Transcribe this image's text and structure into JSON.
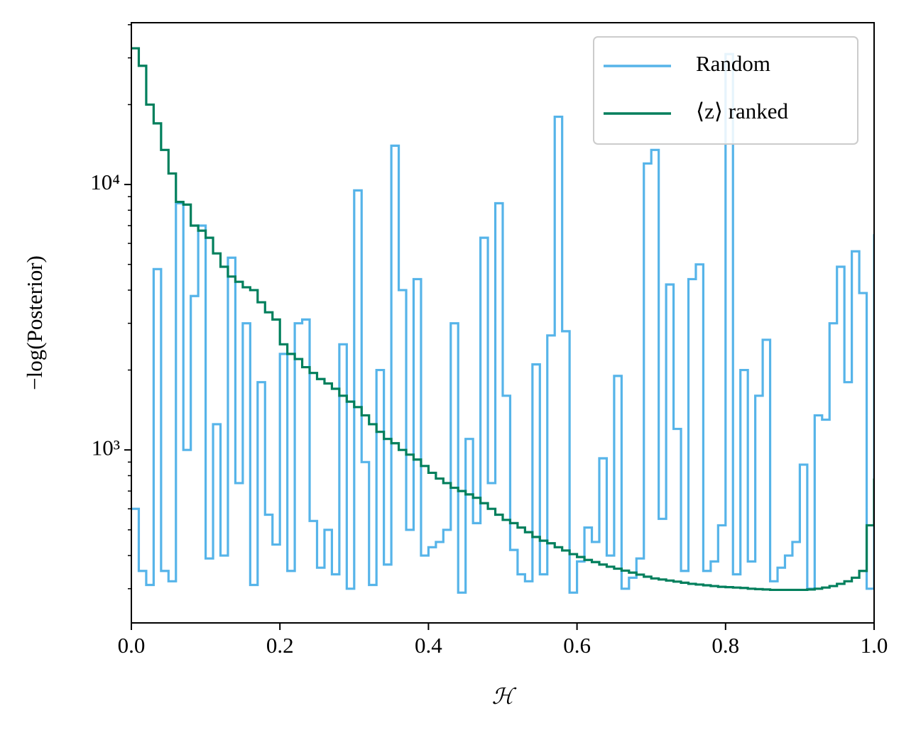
{
  "chart_data": {
    "type": "step",
    "xlabel": "ℋ",
    "ylabel": "−log(Posterior)",
    "xlim": [
      0,
      1
    ],
    "xticks": [
      {
        "value": 0,
        "label": "0.0"
      },
      0.2,
      0.4,
      0.6,
      0.8,
      {
        "value": 1,
        "label": "1.0"
      }
    ],
    "ylim": [
      223,
      40700
    ],
    "yscale": "log",
    "yticks": [
      {
        "value": 1000,
        "label": "10³"
      },
      {
        "value": 10000,
        "label": "10⁴"
      }
    ],
    "yminorticks": [
      300,
      400,
      500,
      600,
      700,
      800,
      900,
      2000,
      3000,
      4000,
      5000,
      6000,
      7000,
      8000,
      9000,
      20000,
      30000,
      40000
    ],
    "step": "post",
    "legend": "upper right",
    "x": [
      0,
      0.01,
      0.02,
      0.03,
      0.04,
      0.05,
      0.06,
      0.07,
      0.08,
      0.09,
      0.1,
      0.11,
      0.12,
      0.13,
      0.14,
      0.15,
      0.16,
      0.17,
      0.18,
      0.19,
      0.2,
      0.21,
      0.22,
      0.23,
      0.24,
      0.25,
      0.26,
      0.27,
      0.28,
      0.29,
      0.3,
      0.31,
      0.32,
      0.33,
      0.34,
      0.35,
      0.36,
      0.37,
      0.38,
      0.39,
      0.4,
      0.41,
      0.42,
      0.43,
      0.44,
      0.45,
      0.46,
      0.47,
      0.48,
      0.49,
      0.5,
      0.51,
      0.52,
      0.53,
      0.54,
      0.55,
      0.56,
      0.57,
      0.58,
      0.59,
      0.6,
      0.61,
      0.62,
      0.63,
      0.64,
      0.65,
      0.66,
      0.67,
      0.68,
      0.69,
      0.7,
      0.71,
      0.72,
      0.73,
      0.74,
      0.75,
      0.76,
      0.77,
      0.78,
      0.79,
      0.8,
      0.81,
      0.82,
      0.83,
      0.84,
      0.85,
      0.86,
      0.87,
      0.88,
      0.89,
      0.9,
      0.91,
      0.92,
      0.93,
      0.94,
      0.95,
      0.96,
      0.97,
      0.98,
      0.99,
      1
    ],
    "series": [
      {
        "name": "Random",
        "color": "#56b4e9",
        "values": [
          600,
          350,
          310,
          4800,
          350,
          320,
          8500,
          1000,
          3800,
          7000,
          390,
          1250,
          400,
          5300,
          750,
          3000,
          310,
          1800,
          570,
          440,
          2300,
          350,
          3000,
          3100,
          540,
          360,
          500,
          340,
          2500,
          300,
          9500,
          900,
          310,
          2000,
          370,
          14000,
          4000,
          500,
          4400,
          400,
          430,
          450,
          500,
          3000,
          290,
          1100,
          530,
          6300,
          750,
          8500,
          1600,
          420,
          340,
          320,
          2100,
          340,
          2700,
          18000,
          2800,
          290,
          380,
          510,
          450,
          930,
          400,
          1900,
          300,
          330,
          390,
          12000,
          13500,
          550,
          4200,
          1200,
          350,
          4400,
          5000,
          350,
          380,
          520,
          31000,
          340,
          2000,
          380,
          1600,
          2600,
          320,
          360,
          400,
          450,
          880,
          300,
          1350,
          1300,
          3000,
          4900,
          1800,
          5600,
          3900,
          300,
          6500
        ]
      },
      {
        "name": "⟨z⟩ ranked",
        "color": "#007f5c",
        "values": [
          32600,
          28000,
          20000,
          17000,
          13500,
          11000,
          8600,
          8400,
          7000,
          6700,
          6300,
          5500,
          4900,
          4500,
          4300,
          4100,
          4000,
          3600,
          3300,
          3100,
          2500,
          2300,
          2200,
          2050,
          1950,
          1850,
          1780,
          1700,
          1600,
          1520,
          1450,
          1350,
          1250,
          1170,
          1100,
          1060,
          1000,
          960,
          920,
          870,
          820,
          780,
          750,
          720,
          700,
          680,
          660,
          630,
          600,
          570,
          545,
          530,
          510,
          490,
          470,
          455,
          445,
          430,
          418,
          405,
          395,
          385,
          378,
          370,
          363,
          357,
          351,
          345,
          339,
          333,
          328,
          325,
          322,
          319,
          316,
          313,
          311,
          309,
          307,
          305,
          304,
          303,
          302,
          300,
          299,
          298,
          297,
          297,
          297,
          297,
          297,
          298,
          300,
          303,
          307,
          313,
          320,
          330,
          350,
          520,
          780
        ]
      }
    ]
  }
}
